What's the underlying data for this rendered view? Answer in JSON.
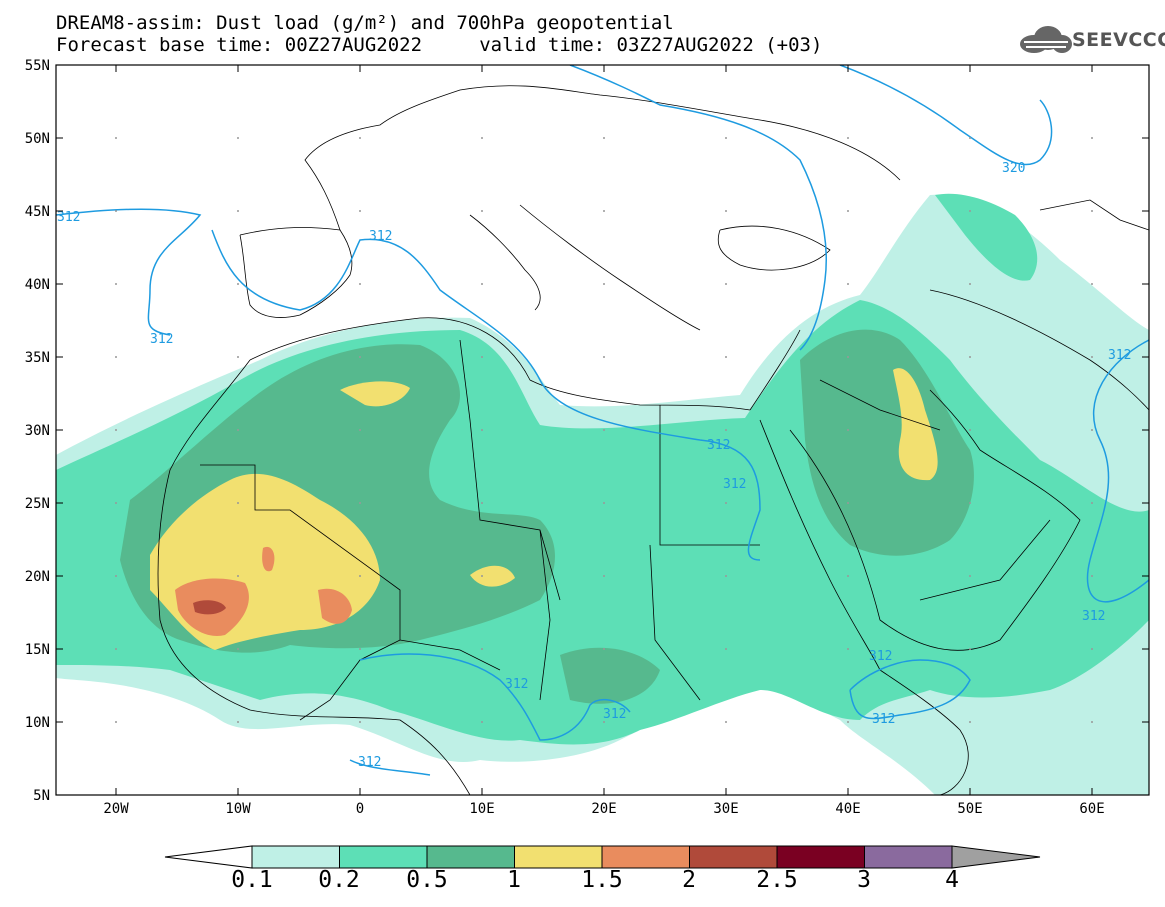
{
  "title": {
    "line1": "DREAM8-assim: Dust load (g/m²) and 700hPa geopotential",
    "line2": "Forecast base time: 00Z27AUG2022     valid time: 03Z27AUG2022 (+03)"
  },
  "logo": {
    "text": "SEEVCCC"
  },
  "map": {
    "lat_labels": [
      "55N",
      "50N",
      "45N",
      "40N",
      "35N",
      "30N",
      "25N",
      "20N",
      "15N",
      "10N",
      "5N"
    ],
    "lon_labels": [
      "20W",
      "10W",
      "0",
      "10E",
      "20E",
      "30E",
      "40E",
      "50E",
      "60E"
    ],
    "contour_labels": [
      "312",
      "312",
      "312",
      "312",
      "312",
      "312",
      "312",
      "312",
      "312",
      "312",
      "312",
      "312",
      "320"
    ],
    "colors": {
      "contour": "#1e9be0",
      "level_0.1": "#bff0e6",
      "level_0.2": "#5ddfb6",
      "level_0.5": "#56b98e",
      "level_1": "#f2e070",
      "level_1.5": "#e98c5e",
      "level_2": "#b04a3a",
      "level_2.5": "#7a0022",
      "level_3": "#8a6a9e",
      "level_4": "#a0a0a0"
    }
  },
  "colorbar": {
    "labels": [
      "0.1",
      "0.2",
      "0.5",
      "1",
      "1.5",
      "2",
      "2.5",
      "3",
      "4"
    ],
    "colors": [
      "#bff0e6",
      "#5ddfb6",
      "#56b98e",
      "#f2e070",
      "#e98c5e",
      "#b04a3a",
      "#7a0022",
      "#8a6a9e"
    ],
    "over_color": "#a0a0a0",
    "under_color": "#ffffff"
  }
}
